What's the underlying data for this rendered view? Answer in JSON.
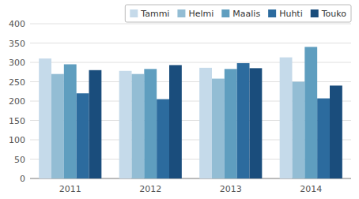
{
  "chart_data": {
    "type": "bar",
    "categories": [
      "2011",
      "2012",
      "2013",
      "2014"
    ],
    "series": [
      {
        "name": "Tammi",
        "color": "#c5daea",
        "values": [
          310,
          278,
          286,
          313
        ]
      },
      {
        "name": "Helmi",
        "color": "#93bdd4",
        "values": [
          270,
          270,
          258,
          250
        ]
      },
      {
        "name": "Maalis",
        "color": "#5f9ebf",
        "values": [
          295,
          283,
          283,
          340
        ]
      },
      {
        "name": "Huhti",
        "color": "#2c6b9e",
        "values": [
          220,
          205,
          298,
          207
        ]
      },
      {
        "name": "Touko",
        "color": "#1a4d7c",
        "values": [
          280,
          293,
          285,
          240
        ]
      }
    ],
    "ylim": [
      0,
      400
    ],
    "yticks": [
      0,
      50,
      100,
      150,
      200,
      250,
      300,
      350,
      400
    ],
    "grid": true,
    "legend": "upper right"
  }
}
